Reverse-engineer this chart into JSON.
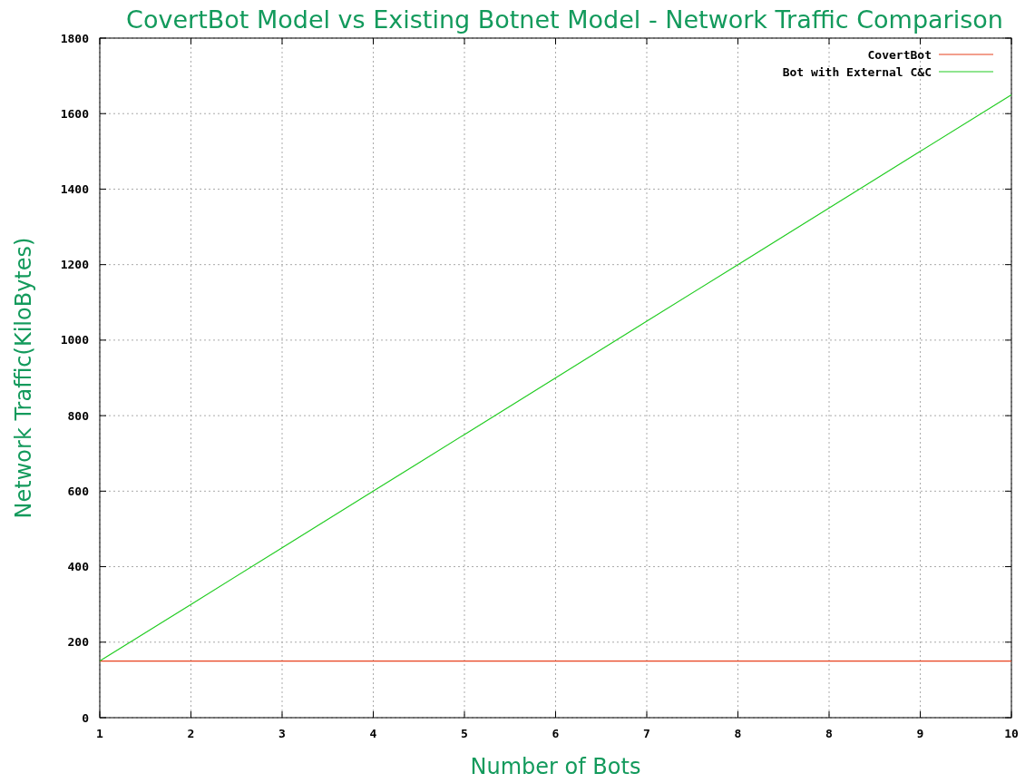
{
  "chart_data": {
    "type": "line",
    "title": "CovertBot Model vs Existing Botnet Model - Network Traffic Comparison",
    "xlabel": "Number of Bots",
    "ylabel": "Network Traffic(KiloBytes)",
    "categories": [
      "1",
      "2",
      "3",
      "4",
      "5",
      "6",
      "7",
      "8",
      "8",
      "9",
      "10"
    ],
    "series": [
      {
        "name": "CovertBot",
        "color": "#e8401c",
        "values": [
          150,
          150,
          150,
          150,
          150,
          150,
          150,
          150,
          150,
          150,
          150
        ]
      },
      {
        "name": "Bot with External C&C",
        "color": "#22cc22",
        "values": [
          150,
          300,
          450,
          600,
          750,
          900,
          1050,
          1200,
          1350,
          1500,
          1650
        ]
      }
    ],
    "ylim": [
      0,
      1800
    ],
    "yticks": [
      0,
      200,
      400,
      600,
      800,
      1000,
      1200,
      1400,
      1600,
      1800
    ],
    "grid": true,
    "legend": "top right",
    "marker": "none",
    "line_style": "solid"
  }
}
